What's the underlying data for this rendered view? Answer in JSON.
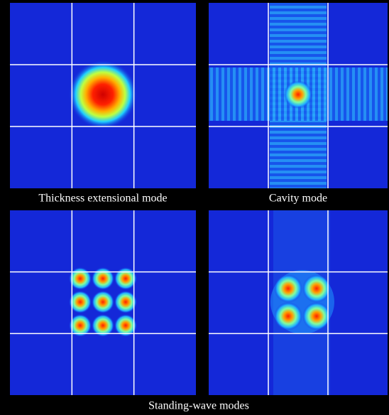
{
  "top_captions": [
    "Thickness extensional mode",
    "Cavity mode"
  ],
  "bottom_caption": "Standing-wave modes"
}
